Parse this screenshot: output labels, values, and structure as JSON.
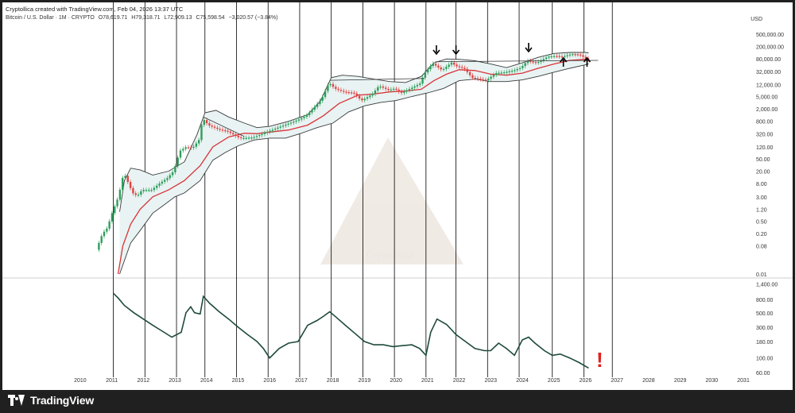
{
  "header": {
    "attribution": "Cryptollica created with TradingView.com, Feb 04, 2026 13:37 UTC",
    "symbol": "Bitcoin / U.S. Dollar · 1M · CRYPTO",
    "open": "O78,619.71",
    "high": "H79,318.71",
    "low": "L72,909.13",
    "close": "C75,598.54",
    "change": "−3,020.57 (−3.84%)",
    "currency": "USD"
  },
  "colors": {
    "up": "#2e9e5b",
    "down": "#e04444",
    "basis": "#d8343a",
    "band": "#3a3a3a",
    "band_fill": "#e9f3f3",
    "oscillator": "#1e4a3a",
    "warning": "#e02020",
    "grid_vline": "#000000"
  },
  "watermark": "Cryptollica",
  "icons": {
    "arrows_down": "arrow-down-icon",
    "arrows_up": "arrow-up-icon",
    "warning": "exclamation-icon"
  },
  "footer": {
    "brand": "TradingView"
  },
  "chart_data": [
    {
      "type": "candlestick",
      "title": "Bitcoin / U.S. Dollar · 1M · CRYPTO",
      "scale": "log",
      "y_ticks": [
        "0.01",
        "0.08",
        "0.20",
        "0.50",
        "1.20",
        "3.00",
        "8.00",
        "20.00",
        "50.00",
        "120.00",
        "320.00",
        "800.00",
        "2,000.00",
        "5,000.00",
        "12,000.00",
        "32,000.00",
        "80,000.00",
        "200,000.00",
        "500,000.00"
      ],
      "ylim": [
        0.01,
        900000
      ],
      "x_ticks": [
        "2010",
        "2011",
        "2012",
        "2013",
        "2014",
        "2015",
        "2016",
        "2017",
        "2018",
        "2019",
        "2020",
        "2021",
        "2022",
        "2023",
        "2024",
        "2025",
        "2026",
        "2027",
        "2028",
        "2029",
        "2030",
        "2031"
      ],
      "xlim": [
        2009.55,
        2031.2
      ],
      "price_path": [
        [
          2010.55,
          0.06
        ],
        [
          2010.75,
          0.2
        ],
        [
          2010.9,
          0.3
        ],
        [
          2011.05,
          0.9
        ],
        [
          2011.25,
          3
        ],
        [
          2011.42,
          18
        ],
        [
          2011.55,
          9
        ],
        [
          2011.7,
          4
        ],
        [
          2011.85,
          3.2
        ],
        [
          2012.0,
          5
        ],
        [
          2012.3,
          5
        ],
        [
          2012.55,
          8
        ],
        [
          2012.8,
          12
        ],
        [
          2013.0,
          20
        ],
        [
          2013.2,
          90
        ],
        [
          2013.4,
          120
        ],
        [
          2013.6,
          110
        ],
        [
          2013.8,
          200
        ],
        [
          2013.92,
          1000
        ],
        [
          2014.1,
          600
        ],
        [
          2014.4,
          450
        ],
        [
          2014.7,
          380
        ],
        [
          2014.95,
          280
        ],
        [
          2015.1,
          230
        ],
        [
          2015.5,
          240
        ],
        [
          2015.8,
          310
        ],
        [
          2016.0,
          380
        ],
        [
          2016.5,
          600
        ],
        [
          2016.9,
          850
        ],
        [
          2017.2,
          1200
        ],
        [
          2017.5,
          2500
        ],
        [
          2017.7,
          4400
        ],
        [
          2017.92,
          14000
        ],
        [
          2018.1,
          9000
        ],
        [
          2018.4,
          7000
        ],
        [
          2018.7,
          6500
        ],
        [
          2018.95,
          3700
        ],
        [
          2019.3,
          6000
        ],
        [
          2019.5,
          11000
        ],
        [
          2019.8,
          8000
        ],
        [
          2020.0,
          9000
        ],
        [
          2020.2,
          6400
        ],
        [
          2020.5,
          9000
        ],
        [
          2020.8,
          13000
        ],
        [
          2020.95,
          28000
        ],
        [
          2021.2,
          58000
        ],
        [
          2021.5,
          35000
        ],
        [
          2021.8,
          61000
        ],
        [
          2021.95,
          47000
        ],
        [
          2022.2,
          40000
        ],
        [
          2022.45,
          20000
        ],
        [
          2022.9,
          16500
        ],
        [
          2023.2,
          28000
        ],
        [
          2023.5,
          30000
        ],
        [
          2023.8,
          35000
        ],
        [
          2024.0,
          42000
        ],
        [
          2024.2,
          70000
        ],
        [
          2024.5,
          60000
        ],
        [
          2024.85,
          95000
        ],
        [
          2025.1,
          100000
        ],
        [
          2025.3,
          94000
        ],
        [
          2025.6,
          115000
        ],
        [
          2025.85,
          110000
        ],
        [
          2026.0,
          90000
        ],
        [
          2026.1,
          75598
        ]
      ],
      "basis_path": [
        [
          2011.2,
          0.01
        ],
        [
          2011.35,
          0.08
        ],
        [
          2011.6,
          0.4
        ],
        [
          2011.9,
          1.2
        ],
        [
          2012.3,
          3
        ],
        [
          2012.8,
          5
        ],
        [
          2013.3,
          10
        ],
        [
          2013.8,
          30
        ],
        [
          2014.2,
          120
        ],
        [
          2014.7,
          250
        ],
        [
          2015.2,
          330
        ],
        [
          2015.6,
          320
        ],
        [
          2016.0,
          360
        ],
        [
          2016.6,
          420
        ],
        [
          2017.2,
          600
        ],
        [
          2017.7,
          1200
        ],
        [
          2018.2,
          3000
        ],
        [
          2018.8,
          5500
        ],
        [
          2019.3,
          6000
        ],
        [
          2019.8,
          7000
        ],
        [
          2020.3,
          7500
        ],
        [
          2020.8,
          8500
        ],
        [
          2021.2,
          16000
        ],
        [
          2021.6,
          26000
        ],
        [
          2022.0,
          36000
        ],
        [
          2022.5,
          34000
        ],
        [
          2023.0,
          26000
        ],
        [
          2023.5,
          24000
        ],
        [
          2024.0,
          28000
        ],
        [
          2024.5,
          40000
        ],
        [
          2025.0,
          55000
        ],
        [
          2025.5,
          72000
        ],
        [
          2026.0,
          78000
        ],
        [
          2026.1,
          78000
        ]
      ],
      "upper_band_path": [
        [
          2011.25,
          1
        ],
        [
          2011.4,
          10
        ],
        [
          2011.6,
          25
        ],
        [
          2011.9,
          22
        ],
        [
          2012.3,
          15
        ],
        [
          2012.8,
          20
        ],
        [
          2013.3,
          40
        ],
        [
          2013.7,
          300
        ],
        [
          2013.95,
          1500
        ],
        [
          2014.3,
          1800
        ],
        [
          2014.7,
          1100
        ],
        [
          2015.2,
          700
        ],
        [
          2015.6,
          500
        ],
        [
          2016.0,
          550
        ],
        [
          2016.6,
          800
        ],
        [
          2017.2,
          1300
        ],
        [
          2017.6,
          3500
        ],
        [
          2017.95,
          20000
        ],
        [
          2018.3,
          24000
        ],
        [
          2018.8,
          22000
        ],
        [
          2019.3,
          18000
        ],
        [
          2019.8,
          15000
        ],
        [
          2020.3,
          14000
        ],
        [
          2020.8,
          22000
        ],
        [
          2021.2,
          60000
        ],
        [
          2021.6,
          80000
        ],
        [
          2022.0,
          78000
        ],
        [
          2022.5,
          70000
        ],
        [
          2023.0,
          55000
        ],
        [
          2023.5,
          42000
        ],
        [
          2024.0,
          60000
        ],
        [
          2024.5,
          90000
        ],
        [
          2025.0,
          120000
        ],
        [
          2025.5,
          130000
        ],
        [
          2026.0,
          130000
        ],
        [
          2026.1,
          125000
        ]
      ],
      "lower_band_path": [
        [
          2011.25,
          0.01
        ],
        [
          2011.6,
          0.1
        ],
        [
          2011.9,
          0.25
        ],
        [
          2012.3,
          0.9
        ],
        [
          2012.6,
          1.5
        ],
        [
          2013.0,
          3
        ],
        [
          2013.3,
          4
        ],
        [
          2013.8,
          10
        ],
        [
          2014.2,
          45
        ],
        [
          2014.6,
          80
        ],
        [
          2015.0,
          130
        ],
        [
          2015.5,
          200
        ],
        [
          2016.0,
          230
        ],
        [
          2016.5,
          230
        ],
        [
          2017.0,
          330
        ],
        [
          2017.5,
          500
        ],
        [
          2018.0,
          700
        ],
        [
          2018.5,
          1600
        ],
        [
          2019.0,
          2500
        ],
        [
          2019.5,
          3200
        ],
        [
          2020.0,
          3700
        ],
        [
          2020.5,
          5000
        ],
        [
          2021.0,
          6500
        ],
        [
          2021.5,
          9000
        ],
        [
          2022.0,
          16000
        ],
        [
          2022.5,
          18000
        ],
        [
          2023.0,
          15000
        ],
        [
          2023.5,
          15000
        ],
        [
          2024.0,
          17000
        ],
        [
          2024.5,
          22000
        ],
        [
          2025.0,
          30000
        ],
        [
          2025.5,
          40000
        ],
        [
          2026.0,
          52000
        ],
        [
          2026.1,
          56000
        ]
      ],
      "trendlines": [
        [
          [
            2013.9,
            1100
          ],
          [
            2015.2,
            260
          ]
        ],
        [
          [
            2017.9,
            16500
          ],
          [
            2020.9,
            19000
          ]
        ],
        [
          [
            2021.25,
            65000
          ],
          [
            2026.4,
            72000
          ]
        ]
      ],
      "year_markers": [
        2011.05,
        2013.95,
        2017.95,
        2021.9,
        2025.8
      ],
      "cycle_vlines": [
        2011.05,
        2012.05,
        2013.05,
        2013.95,
        2014.95,
        2015.95,
        2016.95,
        2017.95,
        2018.95,
        2019.95,
        2020.95,
        2021.9,
        2022.9,
        2023.9,
        2024.95,
        2025.95,
        2026.85
      ]
    },
    {
      "type": "line",
      "title": "",
      "scale": "log",
      "y_ticks": [
        "60.00",
        "100.00",
        "180.00",
        "300.00",
        "500.00",
        "800.00",
        "1,400.00"
      ],
      "ylim": [
        58,
        1500
      ],
      "x": [
        2011.05,
        2011.2,
        2011.4,
        2011.7,
        2012.0,
        2012.3,
        2012.6,
        2012.9,
        2013.2,
        2013.35,
        2013.5,
        2013.62,
        2013.8,
        2013.9,
        2014.1,
        2014.4,
        2014.7,
        2015.0,
        2015.3,
        2015.6,
        2015.8,
        2016.0,
        2016.3,
        2016.6,
        2016.9,
        2017.2,
        2017.5,
        2017.7,
        2017.9,
        2018.1,
        2018.4,
        2018.7,
        2019.0,
        2019.3,
        2019.6,
        2019.9,
        2020.2,
        2020.5,
        2020.75,
        2020.95,
        2021.1,
        2021.3,
        2021.6,
        2021.9,
        2022.2,
        2022.5,
        2022.8,
        2023.0,
        2023.25,
        2023.5,
        2023.75,
        2024.0,
        2024.2,
        2024.4,
        2024.7,
        2024.95,
        2025.2,
        2025.5,
        2025.8,
        2026.1
      ],
      "y": [
        1000,
        850,
        650,
        500,
        400,
        320,
        260,
        210,
        250,
        500,
        620,
        500,
        480,
        900,
        700,
        520,
        400,
        300,
        230,
        180,
        140,
        100,
        140,
        170,
        180,
        320,
        380,
        440,
        520,
        430,
        320,
        240,
        180,
        160,
        160,
        150,
        155,
        160,
        140,
        110,
        250,
        400,
        330,
        230,
        180,
        140,
        130,
        130,
        170,
        140,
        110,
        190,
        210,
        170,
        130,
        110,
        115,
        100,
        85,
        70
      ],
      "annotation": "!",
      "annotation_x": 2026.45
    }
  ]
}
